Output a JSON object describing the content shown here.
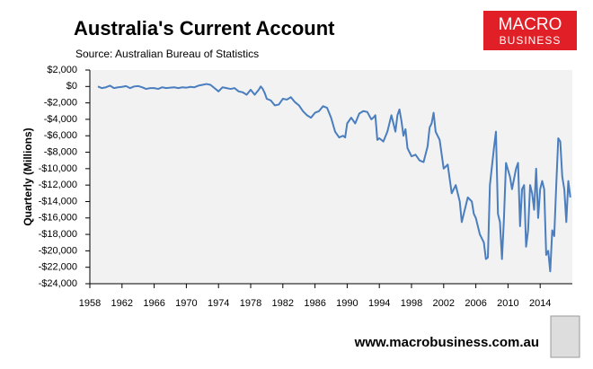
{
  "chart_data": {
    "type": "line",
    "title": "Australia's Current Account",
    "subtitle": "Source: Australian Bureau of Statistics",
    "ylabel": "Quarterly (Millions)",
    "x": [
      1959,
      1959.5,
      1960,
      1960.5,
      1961,
      1961.5,
      1962,
      1962.5,
      1963,
      1963.5,
      1964,
      1964.5,
      1965,
      1965.5,
      1966,
      1966.5,
      1967,
      1967.5,
      1968,
      1968.5,
      1969,
      1969.5,
      1970,
      1970.5,
      1971,
      1971.5,
      1972,
      1972.5,
      1973,
      1973.5,
      1974,
      1974.5,
      1975,
      1975.5,
      1976,
      1976.5,
      1977,
      1977.5,
      1978,
      1978.5,
      1979,
      1979.25,
      1979.5,
      1979.75,
      1980,
      1980.5,
      1981,
      1981.5,
      1982,
      1982.5,
      1983,
      1983.5,
      1984,
      1984.5,
      1985,
      1985.5,
      1986,
      1986.5,
      1987,
      1987.5,
      1988,
      1988.5,
      1989,
      1989.5,
      1989.75,
      1990,
      1990.5,
      1991,
      1991.5,
      1992,
      1992.5,
      1993,
      1993.25,
      1993.5,
      1993.75,
      1994,
      1994.5,
      1995,
      1995.5,
      1996,
      1996.25,
      1996.5,
      1996.75,
      1997,
      1997.25,
      1997.5,
      1998,
      1998.5,
      1999,
      1999.5,
      2000,
      2000.25,
      2000.5,
      2000.75,
      2001,
      2001.5,
      2002,
      2002.5,
      2003,
      2003.5,
      2004,
      2004.25,
      2004.5,
      2005,
      2005.5,
      2005.75,
      2006,
      2006.5,
      2007,
      2007.25,
      2007.5,
      2007.75,
      2008.25,
      2008.5,
      2008.75,
      2009,
      2009.25,
      2009.5,
      2009.75,
      2010.25,
      2010.5,
      2011,
      2011.25,
      2011.5,
      2011.75,
      2012,
      2012.25,
      2012.5,
      2012.75,
      2013,
      2013.25,
      2013.5,
      2013.75,
      2014,
      2014.25,
      2014.5,
      2014.75,
      2015,
      2015.25,
      2015.5,
      2015.75,
      2016,
      2016.25,
      2016.5,
      2016.75,
      2017,
      2017.25,
      2017.5,
      2017.75
    ],
    "series": [
      {
        "color": "#4a7ebf",
        "values": [
          0,
          -200,
          -100,
          100,
          -200,
          -100,
          -50,
          50,
          -200,
          0,
          50,
          -100,
          -300,
          -200,
          -200,
          -300,
          -100,
          -200,
          -150,
          -100,
          -200,
          -100,
          -150,
          -50,
          -100,
          100,
          200,
          300,
          200,
          -200,
          -600,
          -100,
          -200,
          -300,
          -200,
          -600,
          -700,
          -1000,
          -400,
          -1000,
          -400,
          0,
          -300,
          -800,
          -1500,
          -1700,
          -2300,
          -2200,
          -1500,
          -1600,
          -1300,
          -1900,
          -2300,
          -3000,
          -3500,
          -3800,
          -3200,
          -3000,
          -2400,
          -2600,
          -3800,
          -5500,
          -6200,
          -6000,
          -6200,
          -4500,
          -3800,
          -4500,
          -3300,
          -3000,
          -3100,
          -4000,
          -3800,
          -3500,
          -6500,
          -6300,
          -6700,
          -5500,
          -3500,
          -5500,
          -3500,
          -2800,
          -4200,
          -6000,
          -5200,
          -7500,
          -8500,
          -8300,
          -9000,
          -9200,
          -7300,
          -5000,
          -4500,
          -3200,
          -5500,
          -6500,
          -10000,
          -9500,
          -13000,
          -12000,
          -14000,
          -16500,
          -15500,
          -13500,
          -14000,
          -15500,
          -16000,
          -18000,
          -19000,
          -21000,
          -20800,
          -12000,
          -7500,
          -5500,
          -15500,
          -16500,
          -21000,
          -16000,
          -9300,
          -11000,
          -12500,
          -10000,
          -9300,
          -17000,
          -12500,
          -12000,
          -19500,
          -17500,
          -12000,
          -13000,
          -15000,
          -10000,
          -16000,
          -12500,
          -11500,
          -12500,
          -20500,
          -20000,
          -22500,
          -17500,
          -18200,
          -12000,
          -6300,
          -6700,
          -11000,
          -12500,
          -16500,
          -11500,
          -13500
        ]
      }
    ],
    "xlim": [
      1958,
      2018
    ],
    "xticks": [
      1958,
      1962,
      1966,
      1970,
      1974,
      1978,
      1982,
      1986,
      1990,
      1994,
      1998,
      2002,
      2006,
      2010,
      2014
    ],
    "ylim": [
      -24000,
      2000
    ],
    "yticks": [
      {
        "value": 2000,
        "label": "$2,000"
      },
      {
        "value": 0,
        "label": "$0"
      },
      {
        "value": -2000,
        "label": "-$2,000"
      },
      {
        "value": -4000,
        "label": "-$4,000"
      },
      {
        "value": -6000,
        "label": "-$6,000"
      },
      {
        "value": -8000,
        "label": "-$8,000"
      },
      {
        "value": -10000,
        "label": "-$10,000"
      },
      {
        "value": -12000,
        "label": "-$12,000"
      },
      {
        "value": -14000,
        "label": "-$14,000"
      },
      {
        "value": -16000,
        "label": "-$16,000"
      },
      {
        "value": -18000,
        "label": "-$18,000"
      },
      {
        "value": -20000,
        "label": "-$20,000"
      },
      {
        "value": -22000,
        "label": "-$22,000"
      },
      {
        "value": -24000,
        "label": "-$24,000"
      }
    ],
    "grid": false
  },
  "logo": [
    "MACRO",
    "BUSINESS"
  ],
  "footer": "www.macrobusiness.com.au"
}
